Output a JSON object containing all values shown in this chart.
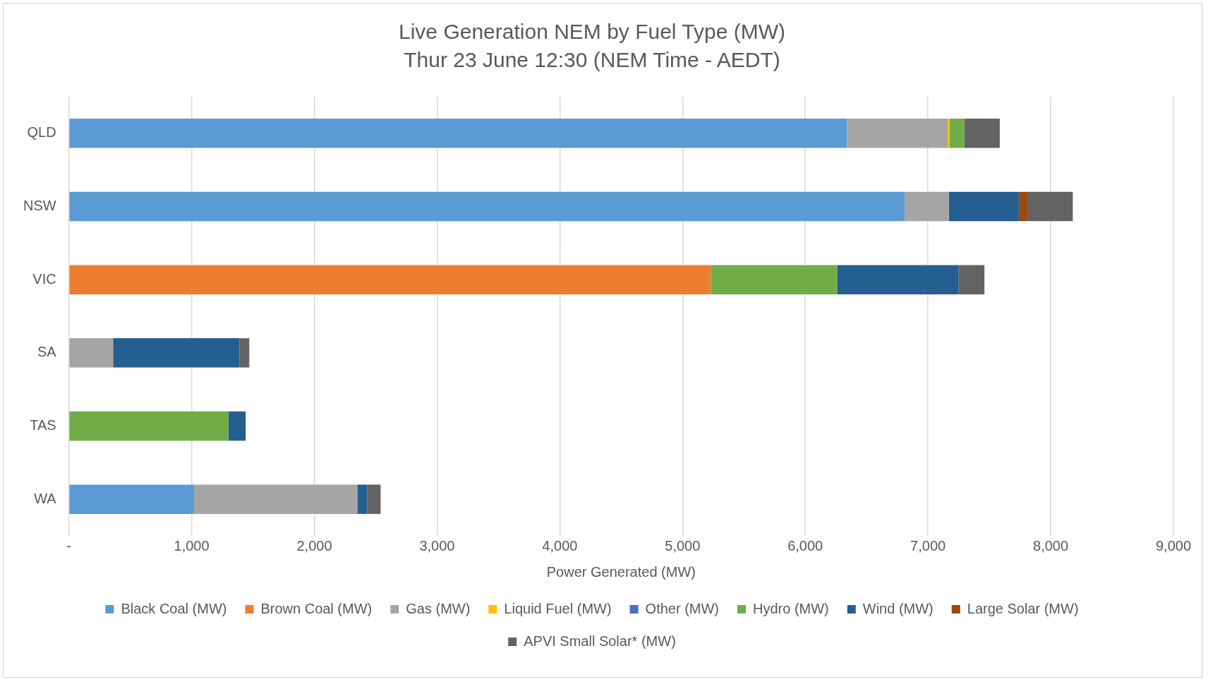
{
  "chart_data": {
    "type": "bar",
    "orientation": "horizontal",
    "stacked": true,
    "title": "Live Generation NEM by Fuel Type (MW)",
    "subtitle": "Thur 23 June 12:30 (NEM Time - AEDT)",
    "xlabel": "Power Generated (MW)",
    "categories": [
      "QLD",
      "NSW",
      "VIC",
      "SA",
      "TAS",
      "WA"
    ],
    "series": [
      {
        "name": "Black Coal (MW)",
        "color": "#5b9bd5",
        "values": [
          6340,
          6810,
          0,
          0,
          0,
          1020
        ]
      },
      {
        "name": "Brown Coal (MW)",
        "color": "#ed7d31",
        "values": [
          0,
          0,
          5230,
          0,
          0,
          0
        ]
      },
      {
        "name": "Gas (MW)",
        "color": "#a5a5a5",
        "values": [
          820,
          360,
          0,
          360,
          0,
          1330
        ]
      },
      {
        "name": "Liquid Fuel (MW)",
        "color": "#ffc000",
        "values": [
          15,
          0,
          0,
          0,
          0,
          0
        ]
      },
      {
        "name": "Other (MW)",
        "color": "#4472c4",
        "values": [
          0,
          0,
          0,
          0,
          0,
          0
        ]
      },
      {
        "name": "Hydro (MW)",
        "color": "#70ad47",
        "values": [
          120,
          0,
          1030,
          0,
          1300,
          0
        ]
      },
      {
        "name": "Wind (MW)",
        "color": "#255e91",
        "values": [
          0,
          570,
          990,
          1030,
          140,
          80
        ]
      },
      {
        "name": "Large Solar (MW)",
        "color": "#9e480e",
        "values": [
          0,
          70,
          0,
          0,
          0,
          0
        ]
      },
      {
        "name": "APVI Small Solar* (MW)",
        "color": "#636363",
        "values": [
          290,
          370,
          210,
          80,
          0,
          110
        ]
      }
    ],
    "xlim": [
      0,
      9000
    ],
    "xticks": [
      {
        "value": 0,
        "label": "-"
      },
      {
        "value": 1000,
        "label": "1,000"
      },
      {
        "value": 2000,
        "label": "2,000"
      },
      {
        "value": 3000,
        "label": "3,000"
      },
      {
        "value": 4000,
        "label": "4,000"
      },
      {
        "value": 5000,
        "label": "5,000"
      },
      {
        "value": 6000,
        "label": "6,000"
      },
      {
        "value": 7000,
        "label": "7,000"
      },
      {
        "value": 8000,
        "label": "8,000"
      },
      {
        "value": 9000,
        "label": "9,000"
      }
    ],
    "grid": "x",
    "legend": "bottom"
  }
}
